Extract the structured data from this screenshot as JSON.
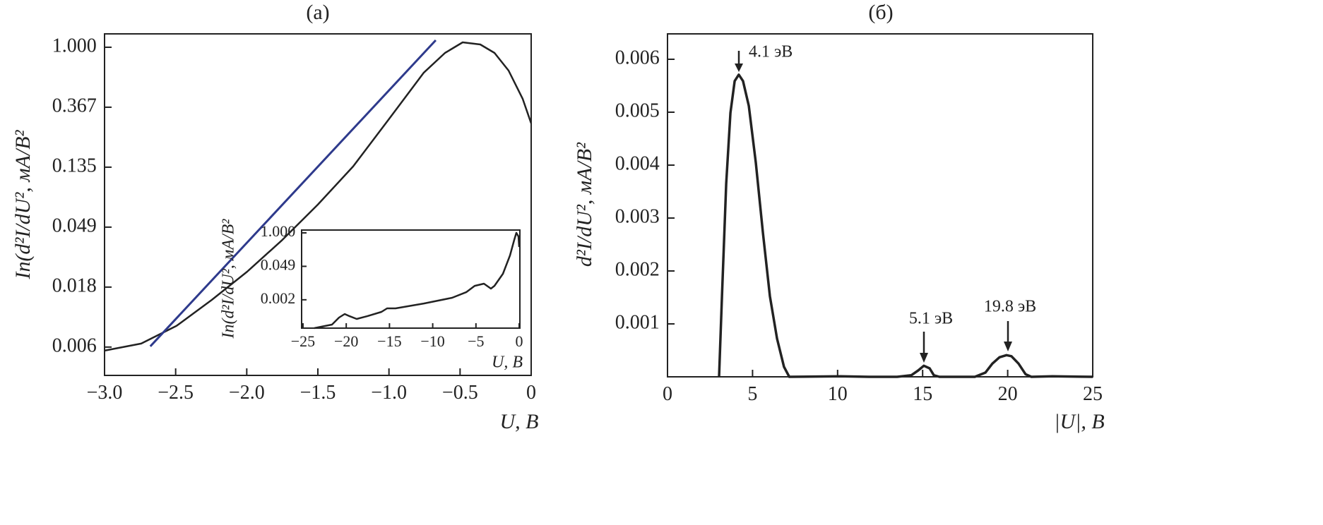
{
  "chart_data": [
    {
      "type": "line",
      "title": "(a)",
      "xlabel": "U, В",
      "ylabel": "In(d²I/dU², мА/В²",
      "log_y": true,
      "xlim": [
        -3,
        0
      ],
      "ylim": [
        0.0042,
        1.25
      ],
      "xticks": [
        {
          "value": -3,
          "label": "−3.0"
        },
        {
          "value": -2.5,
          "label": "−2.5"
        },
        {
          "value": -2,
          "label": "−2.0"
        },
        {
          "value": -1.5,
          "label": "−1.5"
        },
        {
          "value": -1,
          "label": "−1.0"
        },
        {
          "value": -0.5,
          "label": "−0.5"
        },
        0
      ],
      "yticks": [
        {
          "value": 0.006738,
          "label": "0.006"
        },
        {
          "value": 0.018316,
          "label": "0.018"
        },
        {
          "value": 0.049787,
          "label": "0.049"
        },
        {
          "value": 0.135335,
          "label": "0.135"
        },
        {
          "value": 0.367879,
          "label": "0.367"
        },
        {
          "value": 1,
          "label": "1.000"
        }
      ],
      "series": [
        {
          "color": "#222222",
          "x": [
            -3.0,
            -2.742,
            -2.494,
            -2.246,
            -1.997,
            -1.749,
            -1.5,
            -1.252,
            -1.004,
            -0.755,
            -0.606,
            -0.482,
            -0.358,
            -0.258,
            -0.159,
            -0.06,
            0
          ],
          "values": [
            0.00635,
            0.00714,
            0.00959,
            0.0148,
            0.0237,
            0.0403,
            0.0725,
            0.137,
            0.298,
            0.655,
            0.91,
            1.086,
            1.048,
            0.91,
            0.678,
            0.424,
            0.281
          ]
        },
        {
          "color": "#2e3a8c",
          "x": [
            -2.678,
            -0.671
          ],
          "values": [
            0.00682,
            1.125
          ]
        }
      ]
    },
    {
      "type": "line",
      "xlabel": "U, В",
      "ylabel": "In(d²I/dU², мА/В²",
      "log_y": true,
      "xlim": [
        -25.16,
        0.08
      ],
      "ylim": [
        0.000195,
        1.29
      ],
      "xticks": [
        {
          "value": -25,
          "label": "−25"
        },
        {
          "value": -20,
          "label": "−20"
        },
        {
          "value": -15,
          "label": "−15"
        },
        {
          "value": -10,
          "label": "−10"
        },
        {
          "value": -5,
          "label": "−5"
        },
        0
      ],
      "yticks": [
        {
          "value": 0.002479,
          "label": "0.002"
        },
        {
          "value": 0.049787,
          "label": "0.049"
        },
        {
          "value": 1,
          "label": "1.000"
        }
      ],
      "series": [
        {
          "color": "#222222",
          "x": [
            -23.69,
            -22.47,
            -21.65,
            -20.83,
            -20.18,
            -19.61,
            -18.79,
            -17.57,
            -15.93,
            -15.28,
            -14.3,
            -11.03,
            -7.76,
            -6.13,
            -5.15,
            -4.08,
            -3.27,
            -2.86,
            -1.88,
            -1.06,
            -0.57,
            -0.33,
            -0.08,
            0
          ],
          "values": [
            0.000195,
            0.000236,
            0.000267,
            0.000505,
            0.00069,
            0.00057,
            0.000444,
            0.00057,
            0.000834,
            0.00115,
            0.00115,
            0.00178,
            0.00296,
            0.0049,
            0.00866,
            0.0105,
            0.00674,
            0.00866,
            0.0255,
            0.132,
            0.531,
            1.0,
            0.729,
            0.281
          ]
        }
      ]
    },
    {
      "type": "line",
      "title": "(б)",
      "xlabel": "|U|, В",
      "ylabel": "d²I/dU², мА/В²",
      "xlim": [
        0,
        25
      ],
      "ylim": [
        0,
        0.00648
      ],
      "xticks": [
        0,
        5,
        10,
        15,
        20,
        25
      ],
      "yticks": [
        0.001,
        0.002,
        0.003,
        0.004,
        0.005,
        0.006
      ],
      "annotations": [
        "4.1 эВ",
        "5.1 эВ",
        "19.8 эВ"
      ],
      "series": [
        {
          "color": "#222222",
          "x": [
            3.03,
            3.2,
            3.45,
            3.7,
            3.95,
            4.19,
            4.44,
            4.78,
            5.19,
            5.61,
            6.02,
            6.44,
            6.85,
            7.16,
            10.17,
            11.84,
            13.5,
            14.33,
            14.74,
            15.07,
            15.41,
            15.66,
            15.99,
            18.07,
            18.69,
            19.1,
            19.52,
            19.93,
            20.22,
            20.64,
            21.05,
            21.39,
            22.63,
            25
          ],
          "values": [
            0,
            0.00152,
            0.00365,
            0.00499,
            0.00559,
            0.00571,
            0.00559,
            0.00512,
            0.00405,
            0.00272,
            0.00152,
            0.00072,
            0.00019,
            0,
            1e-05,
            0,
            0,
            3e-05,
            0.00012,
            0.00021,
            0.00016,
            3e-05,
            0,
            0,
            8e-05,
            0.00025,
            0.00037,
            0.00041,
            0.00039,
            0.00025,
            5e-05,
            0,
            1e-05,
            0
          ]
        }
      ]
    }
  ]
}
